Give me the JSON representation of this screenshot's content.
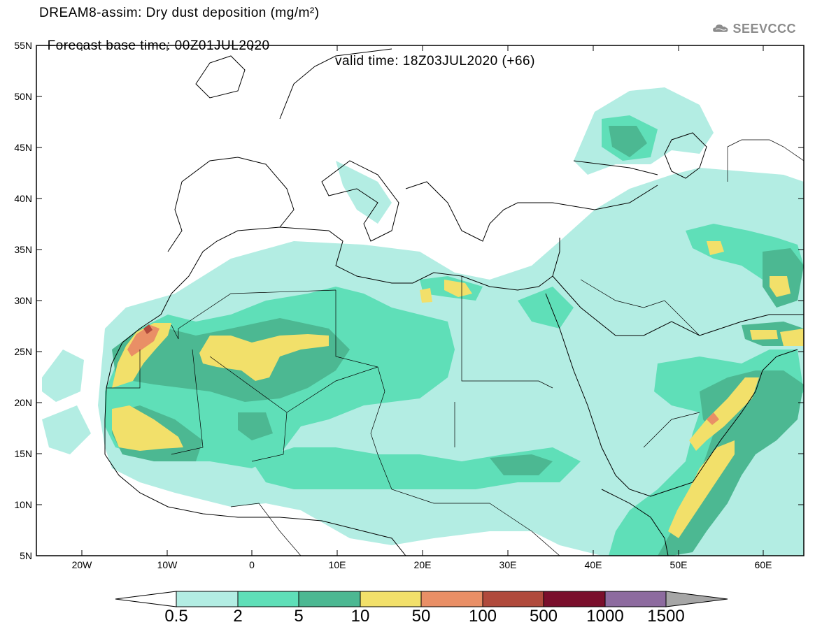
{
  "header": {
    "title_line1": "DREAM8-assim: Dry dust deposition (mg/m²)",
    "title_line2_base": "Forecast base time: 00Z01JUL2020",
    "title_line2_valid": "valid time: 18Z03JUL2020 (+66)",
    "logo_text": "SEEVCCC",
    "logo_icon": "cloud-icon"
  },
  "map": {
    "projection": "lat-lon",
    "lon_range": [
      -25,
      65
    ],
    "lat_range": [
      5,
      55
    ],
    "lat_labels": [
      "55N",
      "50N",
      "45N",
      "40N",
      "35N",
      "30N",
      "25N",
      "20N",
      "15N",
      "10N",
      "5N"
    ],
    "lon_labels": [
      "20W",
      "10W",
      "0",
      "10E",
      "20E",
      "30E",
      "40E",
      "50E",
      "60E"
    ]
  },
  "legend": {
    "levels": [
      "0.5",
      "2",
      "5",
      "10",
      "50",
      "100",
      "500",
      "1000",
      "1500"
    ],
    "colors": [
      "#ffffff",
      "#b3ede3",
      "#5fdfb8",
      "#4cb892",
      "#f2e06a",
      "#e98f66",
      "#b04a3c",
      "#7a0f2c",
      "#8d6b9f",
      "#a6a6a6"
    ]
  }
}
